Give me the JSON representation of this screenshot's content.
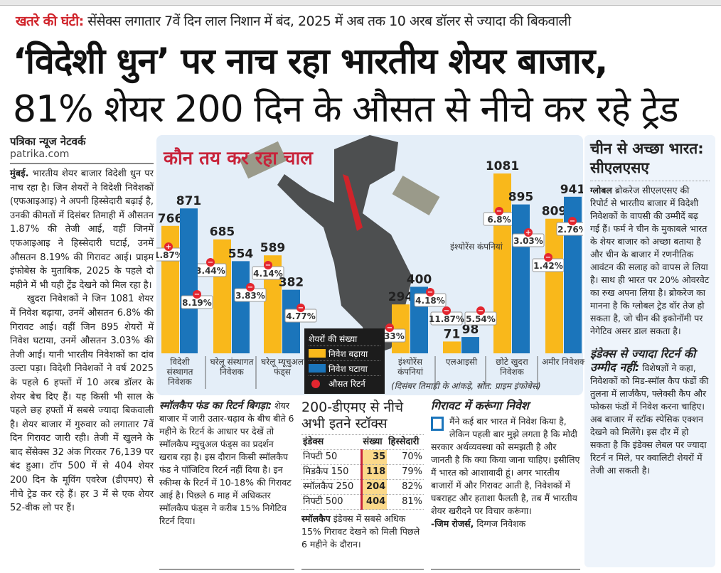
{
  "kicker": {
    "label": "खतरे की घंटी:",
    "text": " सेंसेक्स लगातार 7वें दिन लाल निशान में बंद, 2025 में अब तक 10 अरब डॉलर से ज्यादा की बिकवाली"
  },
  "headline": {
    "line1": "‘विदेशी धुन’ पर नाच रहा भारतीय शेयर बाजार,",
    "line2": "81% शेयर 200 दिन के औसत से नीचे कर रहे ट्रेड"
  },
  "story": {
    "byline": "पत्रिका न्यूज नेटवर्क",
    "site": "patrika.com",
    "place": "मुंबई.",
    "para1": " भारतीय शेयर बाजार विदेशी धुन पर नाच रहा है। जिन शेयरों ने विदेशी निवेशकों (एफआइआइ) ने अपनी हिस्सेदारी बढ़ाई है, उनकी कीमतों में दिसंबर तिमाही में औसतन 1.87% की तेजी आई, वहीं जिनमें एफआइआइ ने हिस्सेदारी घटाई, उनमें औसतन 8.19% की गिरावट आई। प्राइम इंफोबेस के मुताबिक, 2025 के पहले दो महीने में भी यही ट्रेंड देखने को मिल रहा है।",
    "para2": "खुदरा निवेशकों ने जिन 1081 शेयर में निवेश बढ़ाया, उनमें औसतन 6.8% की गिरावट आई। वहीं जिन 895 शेयरों में निवेश घटाया, उनमें औसतन 3.03% की तेजी आई। यानी भारतीय निवेशकों का दांव उल्टा पड़ा। विदेशी निवेशकों ने वर्ष 2025 के पहले 6 हफ्तों में 10 अरब डॉलर के शेयर बेच दिए हैं। यह किसी भी साल के पहले छह हफ्तों में सबसे ज्यादा बिकवाली है। शेयर बाजार में गुरुवार को लगातार 7वें दिन गिरावट जारी रही। तेजी में खुलने के बाद सेंसेक्स 32 अंक गिरकर 76,139 पर बंद हुआ। टॉप 500 में से 404 शेयर 200 दिन के मूविंग एवरेज (डीएमए) से नीचे ट्रेड कर रहे हैं। हर 3 में से एक शेयर 52-वीक लो पर हैं।"
  },
  "chart_data": {
    "type": "bar",
    "title": "कौन तय कर रहा चाल",
    "categories": [
      "विदेशी संस्थागत निवेशक",
      "घरेलू संस्थागत निवेशक",
      "घरेलू म्यूचुअल फंड्स",
      "इंश्योरेंस कंपनियां",
      "एलआइसी",
      "छोटे खुदरा निवेशक",
      "अमीर निवेशक"
    ],
    "series": [
      {
        "name": "निवेश बढ़ाया",
        "color": "#f9b81b",
        "values": [
          766,
          685,
          589,
          294,
          71,
          1081,
          809
        ],
        "avg_return": [
          "+1.87%",
          "-3.44%",
          "-4.14%",
          "-5.33%",
          "-11.87%",
          "-6.8%",
          "-1.42%"
        ]
      },
      {
        "name": "निवेश घटाया",
        "color": "#1b75bb",
        "values": [
          871,
          554,
          382,
          400,
          98,
          895,
          941
        ],
        "avg_return": [
          "-8.19%",
          "-3.83%",
          "-4.77%",
          "-4.18%",
          "-5.54%",
          "+3.03%",
          "-2.76%"
        ]
      }
    ],
    "legend_title": "शेयरों की संख्या",
    "legend_return": "औसत रिटर्न",
    "annotation": "इंश्योरेंस कंपनियां",
    "source": "(दिसंबर तिमाही के आंकड़े, स्रोत: प्राइम इंफोबेस)",
    "ylim": [
      0,
      1200
    ]
  },
  "sidebar": {
    "title": "चीन से अच्छा भारत: सीएलएसए",
    "lead": "ग्लोबल",
    "text": " ब्रोकरेज सीएलएसए की रिपोर्ट से भारतीय बाजार में विदेशी निवेशकों के वापसी की उम्मीदें बढ़ गई हैं। फर्म ने चीन के मुकाबले भारत के शेयर बाजार को अच्छा बताया है और चीन के बाजार में रणनीतिक आवंटन की सलाह को वापस ले लिया है। साथ ही भारत पर 20% ओवरवेट का रुख अपना लिया है। ब्रोकरेज का मानना है कि ग्लोबल ट्रेड वॉर तेज हो सकता है, जो चीन की इकोनॉमी पर नेगेटिव असर डाल सकता है।",
    "sub_head": "इंडेक्स से ज्यादा रिटर्न की उम्मीद नहीं:",
    "sub_text": " विशेषज्ञों ने कहा, निवेशकों को मिड-स्मॉल कैप फंडों की तुलना में लार्जकैप, फ्लेक्सी कैप और फोकस फंडों में निवेश करना चाहिए। अब बाजार में स्टॉक स्पेसिक एक्शन देखने को मिलेंगे। इस दौर में हो सकता है कि इंडेक्स लेबल पर ज्यादा रिटर्न न मिले, पर क्वालिटी शेयरों में तेजी आ सकती है।"
  },
  "smallcap": {
    "head": "स्मॉलकैप फंड का रिटर्न बिगड़ा:",
    "text": " शेयर बाजार में जारी उतार-चढ़ाव के बीच बीते 6 महीने के रिटर्न के आधार पर देखें तो स्मॉलकैप म्युचुअल फंड्स का प्रदर्शन खराब रहा है। इस दौरान किसी स्मॉलकैप फंड ने पॉजिटिव रिटर्न नहीं दिया है। इन स्कीम्स के रिटर्न में 10-18% की गिरावट आई है। पिछले 6 माह में अधिकतर स्मॉलकैप फंड्स ने करीब 15% निगेटिव रिटर्न दिया।"
  },
  "dma": {
    "title": "200-डीएमए से नीचे अभी इतने स्टॉक्स",
    "headers": [
      "इंडेक्स",
      "संख्या",
      "हिस्सेदारी"
    ],
    "rows": [
      [
        "निफ्टी 50",
        "35",
        "70%"
      ],
      [
        "मिडकैप 150",
        "118",
        "79%"
      ],
      [
        "स्मॉलकैप 250",
        "204",
        "82%"
      ],
      [
        "निफ्टी 500",
        "404",
        "81%"
      ]
    ],
    "note_lead": "स्मॉलकैप",
    "note": " इंडेक्स में सबसे अधिक 15% गिरावट देखने को मिली पिछले 6 महीने के दौरान।"
  },
  "quote": {
    "head": "गिरावट में करूंगा निवेश",
    "text": "मैंने कई बार भारत में निवेश किया है, लेकिन पहली बार मुझे लगता है कि मोदी सरकार अर्थव्यवस्था को समझती है और जानती है कि क्या किया जाना चाहिए। इसीलिए मैं भारत को आशावादी हूं। अगर भारतीय बाजारों में और गिरावट आती है, निवेशकों में घबराहट और हताशा फैलती है, तब मैं भारतीय शेयर खरीदने पर विचार करूंगा।",
    "author": "-जिम रोजर्स,",
    "role": " दिग्गज निवेशक"
  }
}
